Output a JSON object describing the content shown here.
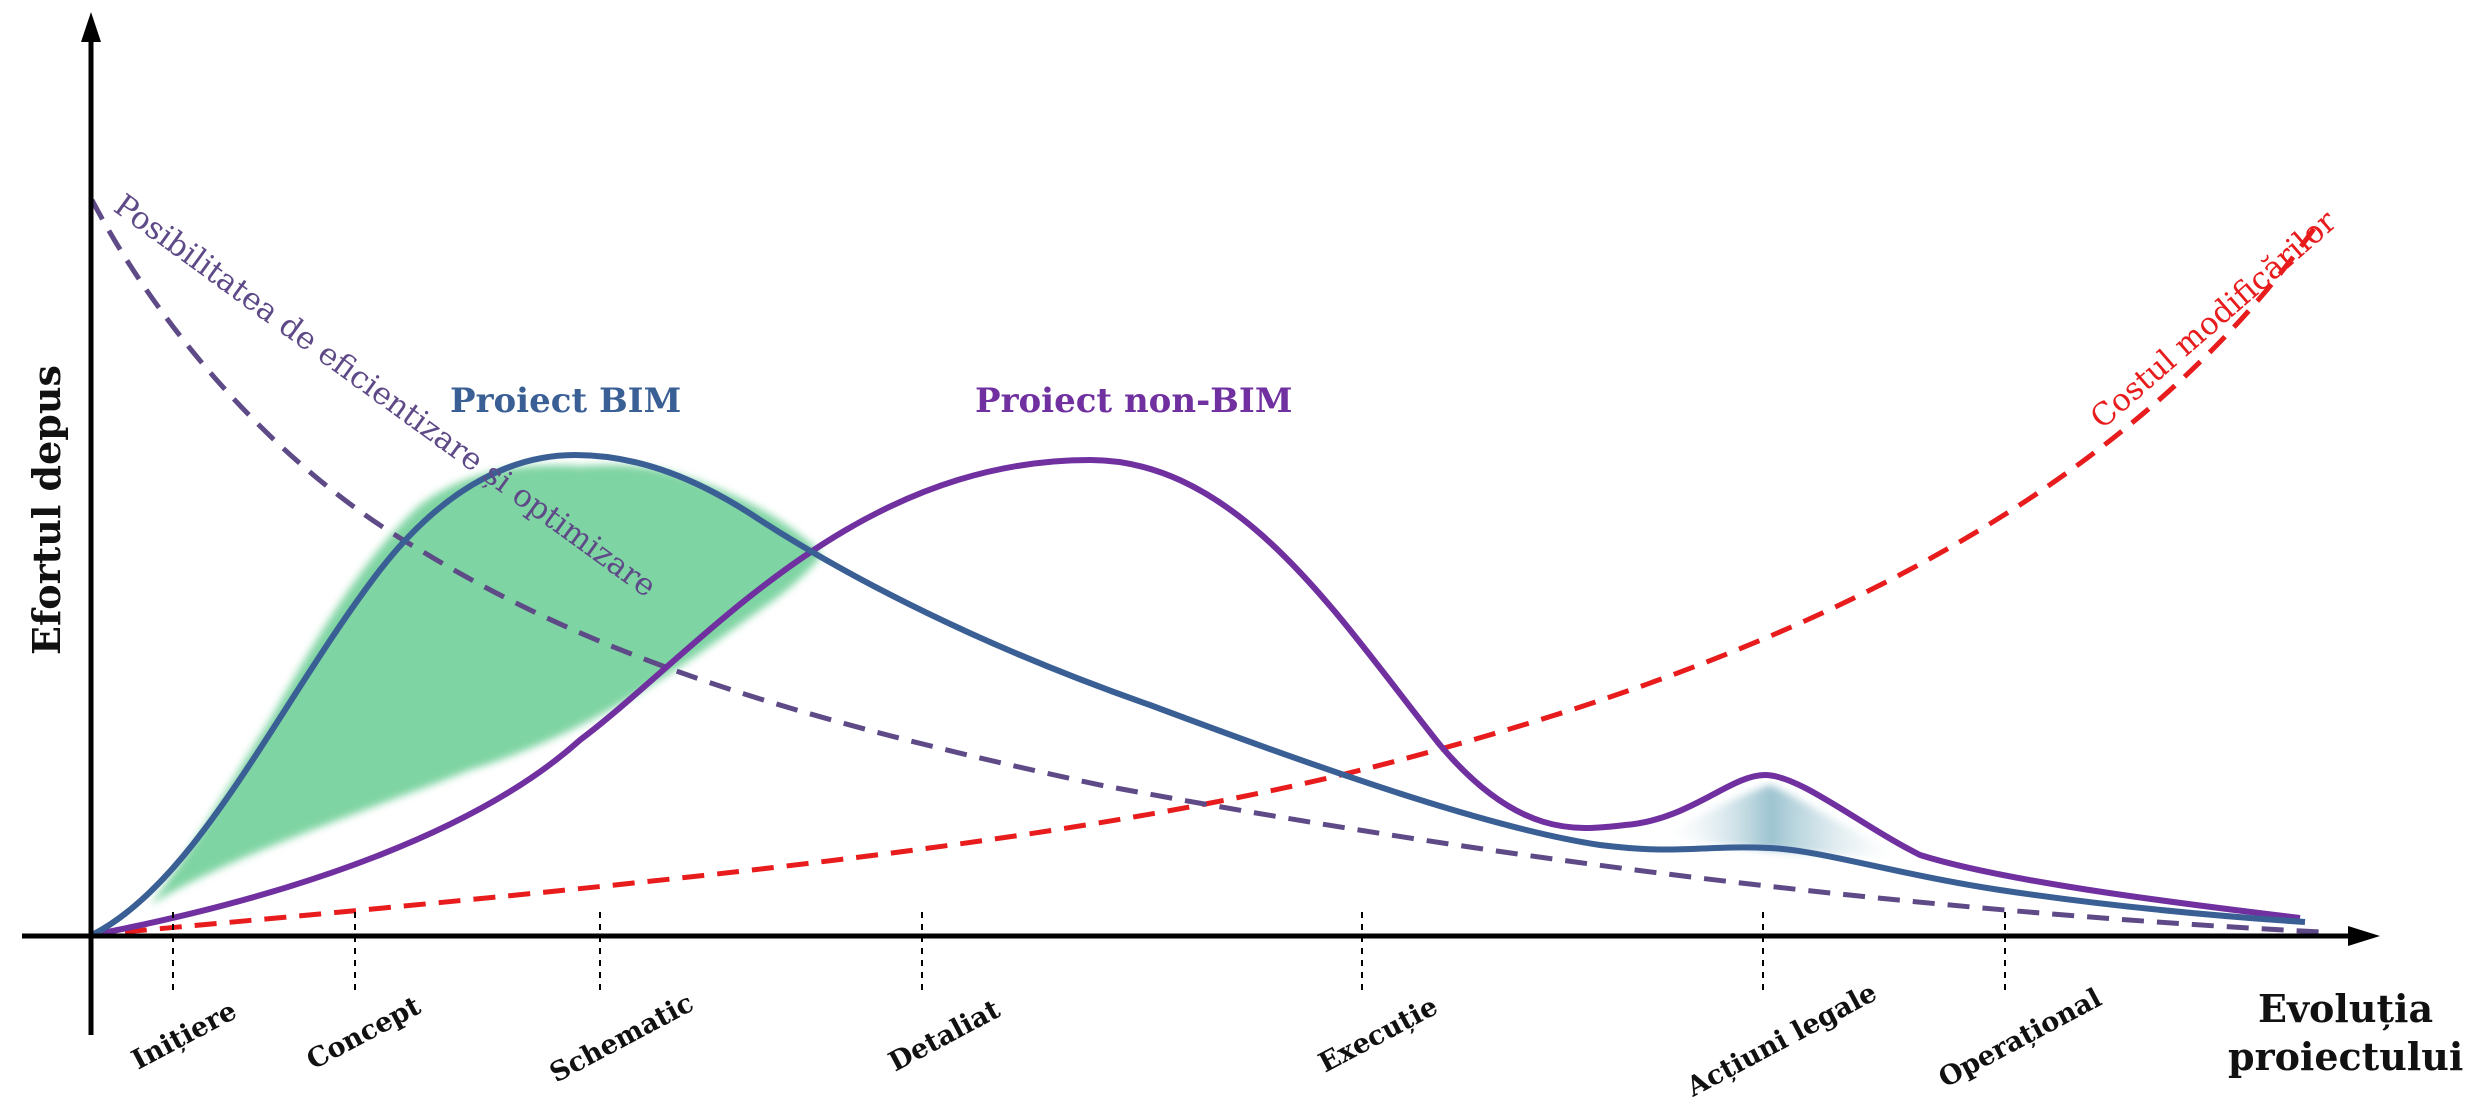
{
  "axes": {
    "y_label": "Efortul depus",
    "x_label_line1": "Evoluția",
    "x_label_line2": "proiectului"
  },
  "curves": {
    "bim": {
      "label": "Proiect BIM",
      "color": "#3a5f95"
    },
    "non_bim": {
      "label": "Proiect non-BIM",
      "color": "#7030a0"
    },
    "optimization": {
      "label": "Posibilitatea de eficientizare și optimizare",
      "color": "#5e4a87"
    },
    "cost": {
      "label": "Costul modificărilor",
      "color": "#e81c1c"
    }
  },
  "areas": {
    "bim_savings_color": "#7fd4a3",
    "late_savings_color": "#9cc3d0"
  },
  "phases": [
    {
      "name": "Inițiere"
    },
    {
      "name": "Concept"
    },
    {
      "name": "Schematic"
    },
    {
      "name": "Detaliat"
    },
    {
      "name": "Execuție"
    },
    {
      "name": "Acțiuni legale"
    },
    {
      "name": "Operațional"
    }
  ]
}
